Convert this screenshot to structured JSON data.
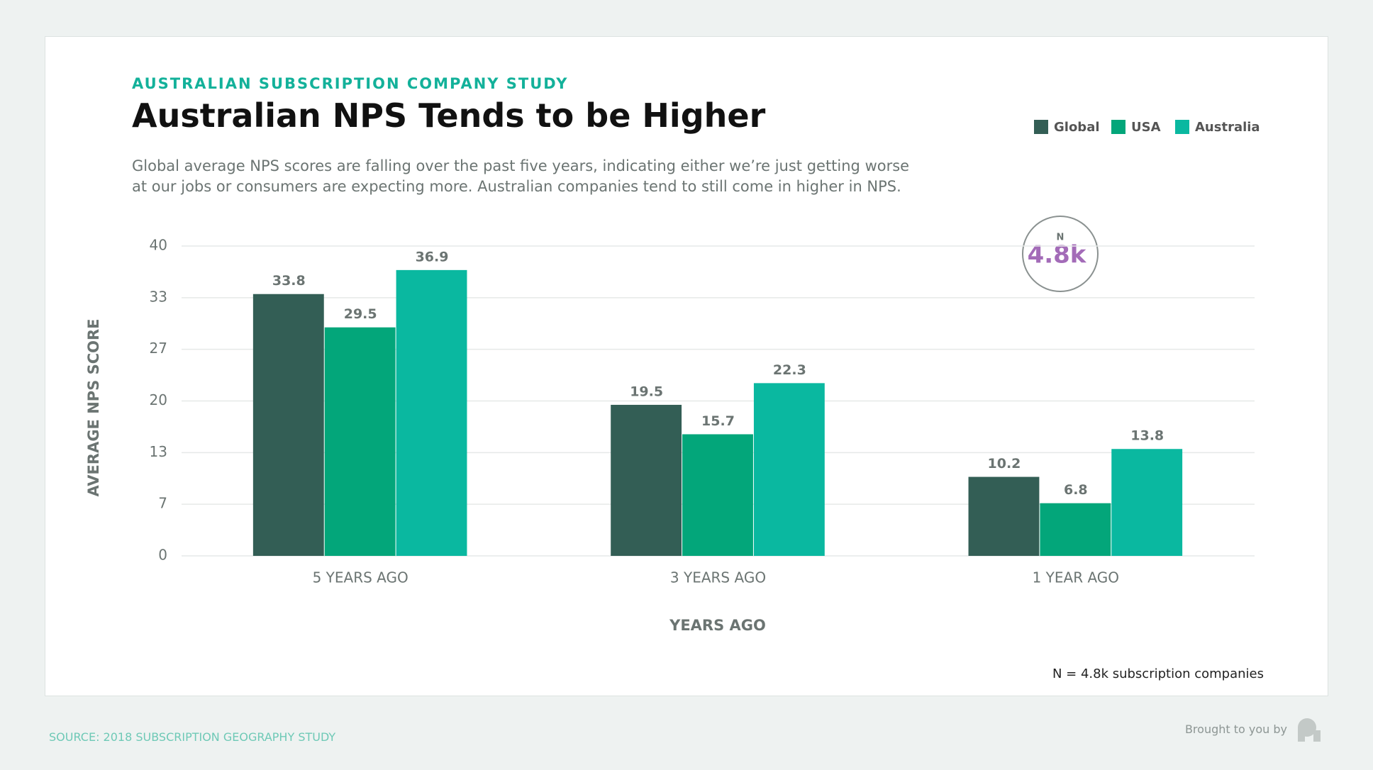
{
  "chart_data": {
    "type": "bar",
    "eyebrow": "AUSTRALIAN SUBSCRIPTION COMPANY STUDY",
    "title": "Australian NPS Tends to be Higher",
    "subtitle": "Global average NPS scores are falling over the past five years, indicating either we’re just getting worse at our jobs or consumers are expecting more. Australian companies tend to still come in higher in NPS.",
    "y_label": "AVERAGE NPS SCORE",
    "x_label": "YEARS AGO",
    "categories": [
      "5 YEARS AGO",
      "3 YEARS AGO",
      "1 YEAR AGO"
    ],
    "series": [
      {
        "name": "Global",
        "color": "#335e55",
        "values": [
          33.8,
          19.5,
          10.2
        ]
      },
      {
        "name": "USA",
        "color": "#03a67a",
        "values": [
          29.5,
          15.7,
          6.8
        ]
      },
      {
        "name": "Australia",
        "color": "#0ab8a0",
        "values": [
          36.9,
          22.3,
          13.8
        ]
      }
    ],
    "ylim": [
      0,
      40
    ],
    "yticks": [
      0,
      {
        "value": 6.67,
        "label": "7"
      },
      {
        "value": 13.33,
        "label": "13"
      },
      20,
      {
        "value": 26.67,
        "label": "27"
      },
      {
        "value": 33.33,
        "label": "33"
      },
      40
    ],
    "grid": true,
    "legend": "top-right",
    "badge": {
      "label": "N",
      "value": "4.8k"
    },
    "footnote": "N = 4.8k subscription companies"
  },
  "footer": {
    "source": "SOURCE: 2018 SUBSCRIPTION GEOGRAPHY STUDY",
    "credit": "Brought to you by"
  }
}
